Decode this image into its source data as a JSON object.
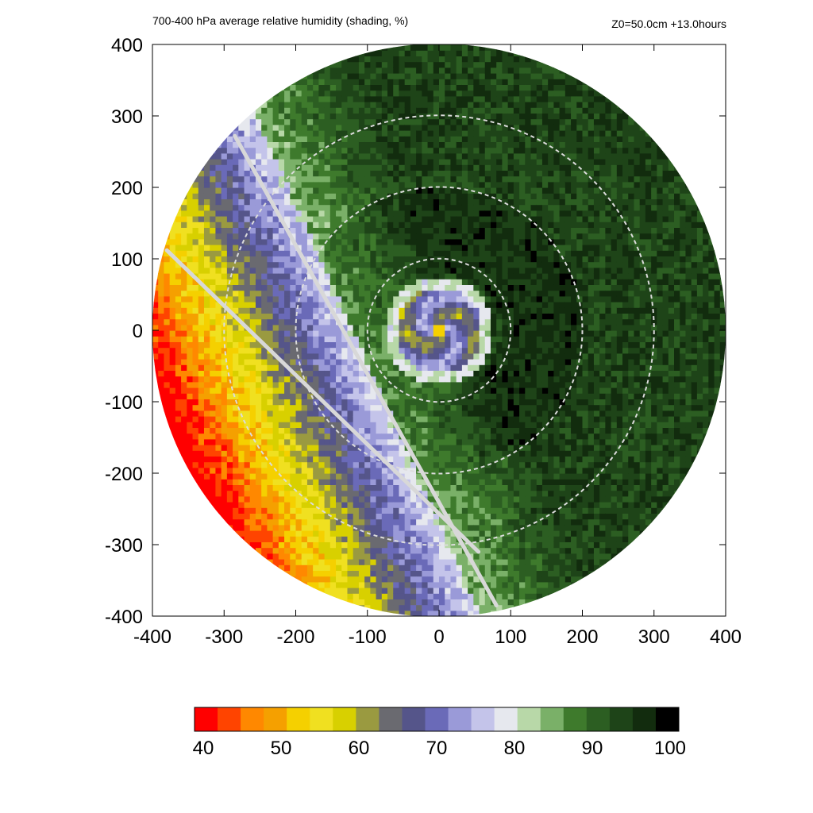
{
  "header": {
    "title": "700-400 hPa average relative humidity (shading, %)",
    "info": "Z0=50.0cm  +13.0hours"
  },
  "chart_data": {
    "type": "heatmap",
    "title": "700-400 hPa average relative humidity (shading, %)",
    "annotation": "Z0=50.0cm  +13.0hours",
    "xlabel": "",
    "ylabel": "",
    "xlim": [
      -400,
      400
    ],
    "ylim": [
      -400,
      400
    ],
    "x_ticks": [
      "-400",
      "-300",
      "-200",
      "-100",
      "0",
      "100",
      "200",
      "300",
      "400"
    ],
    "y_ticks": [
      "400",
      "300",
      "200",
      "100",
      "0",
      "-100",
      "-200",
      "-300",
      "-400"
    ],
    "domain_radius": 400,
    "range_rings": [
      100,
      200,
      300
    ],
    "range_ring_style": "white dashed",
    "cross_section_lines": [
      {
        "from": [
          -285,
          272
        ],
        "to": [
          80,
          -385
        ]
      },
      {
        "from": [
          -380,
          112
        ],
        "to": [
          55,
          -310
        ]
      }
    ],
    "colorbar": {
      "min": 40,
      "max": 100,
      "tick_labels": [
        "40",
        "50",
        "60",
        "70",
        "80",
        "90",
        "100"
      ],
      "colors": [
        "#ff0000",
        "#ff4400",
        "#ff8800",
        "#f5a000",
        "#f5d000",
        "#f0e020",
        "#d8d000",
        "#9a9a40",
        "#6a6a70",
        "#55558a",
        "#6a6ab8",
        "#9a9ad8",
        "#c4c4ea",
        "#e6e8ee",
        "#b8d8a8",
        "#7ab068",
        "#3e7a2c",
        "#2c5e22",
        "#1e4418",
        "#122c0e",
        "#000000"
      ]
    },
    "colors": {
      "yellow": "#e8e020",
      "lavender": "#9898d8",
      "pale": "#e4e8f0",
      "light_green": "#90c078",
      "green": "#3e7a2c",
      "dark_green": "#163812",
      "black_green": "#0a1a08"
    },
    "humidity_field": {
      "center": [
        0,
        0
      ],
      "eye_radius_km": 12,
      "eye_value": 52,
      "eyewall_radius_km": 60,
      "eyewall_value": 68,
      "moat_radius_km": 85,
      "moat_value": 96,
      "dry_sector": "west-northwest",
      "dry_edge_value": 55
    }
  }
}
